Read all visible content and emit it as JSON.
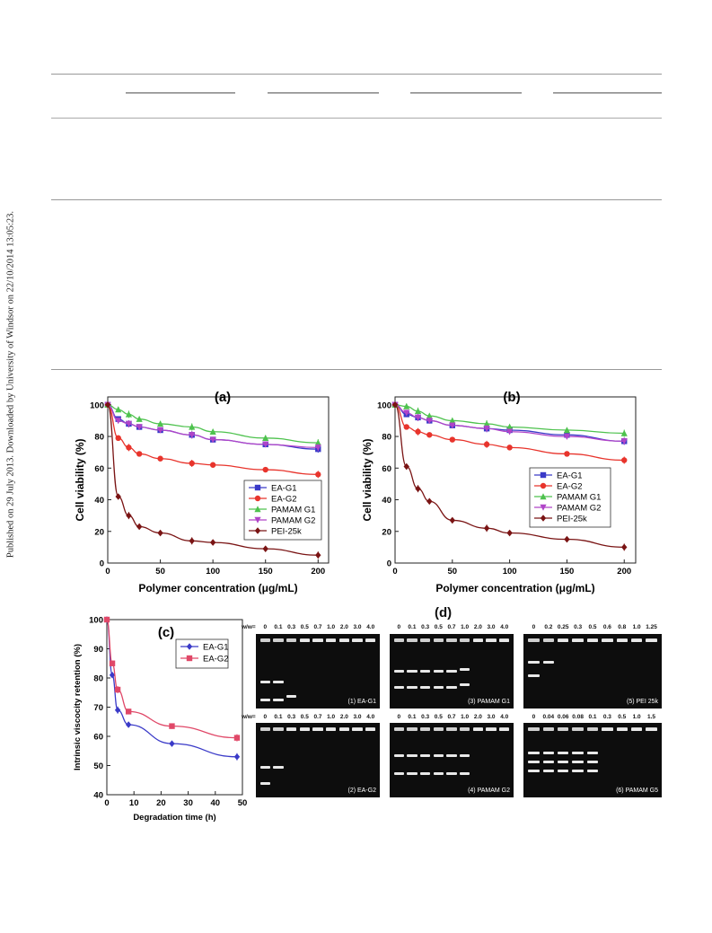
{
  "side_note": "Published on 29 July 2013. Downloaded by University of Windsor on 22/10/2014 13:05:23.",
  "panels": {
    "a": "(a)",
    "b": "(b)",
    "c": "(c)",
    "d": "(d)"
  },
  "chart_data": [
    {
      "type": "line",
      "panel": "(a)",
      "xlabel": "Polymer concentration (μg/mL)",
      "ylabel": "Cell viability (%)",
      "xlim": [
        0,
        210
      ],
      "ylim": [
        0,
        105
      ],
      "xticks": [
        0,
        50,
        100,
        150,
        200
      ],
      "yticks": [
        0,
        20,
        40,
        60,
        80,
        100
      ],
      "legend_position": "bottom-right",
      "x": [
        0,
        10,
        20,
        30,
        50,
        80,
        100,
        150,
        200
      ],
      "series": [
        {
          "name": "EA-G1",
          "color": "#3a3ac8",
          "marker": "square",
          "values": [
            100,
            91,
            88,
            86,
            84,
            81,
            78,
            75,
            72
          ]
        },
        {
          "name": "EA-G2",
          "color": "#e8342c",
          "marker": "circle",
          "values": [
            100,
            79,
            73,
            69,
            66,
            63,
            62,
            59,
            56
          ]
        },
        {
          "name": "PAMAM G1",
          "color": "#4ec24e",
          "marker": "triangle",
          "values": [
            100,
            97,
            94,
            91,
            88,
            86,
            83,
            79,
            76
          ]
        },
        {
          "name": "PAMAM G2",
          "color": "#b044c8",
          "marker": "triangle-down",
          "values": [
            100,
            90,
            88,
            86,
            84,
            81,
            78,
            75,
            73
          ]
        },
        {
          "name": "PEI-25k",
          "color": "#7a1414",
          "marker": "diamond",
          "values": [
            100,
            42,
            30,
            23,
            19,
            14,
            13,
            9,
            5
          ]
        }
      ]
    },
    {
      "type": "line",
      "panel": "(b)",
      "xlabel": "Polymer concentration (μg/mL)",
      "ylabel": "Cell viability (%)",
      "xlim": [
        0,
        210
      ],
      "ylim": [
        0,
        105
      ],
      "xticks": [
        0,
        50,
        100,
        150,
        200
      ],
      "yticks": [
        0,
        20,
        40,
        60,
        80,
        100
      ],
      "legend_position": "right",
      "x": [
        0,
        10,
        20,
        30,
        50,
        80,
        100,
        150,
        200
      ],
      "series": [
        {
          "name": "EA-G1",
          "color": "#3a3ac8",
          "marker": "square",
          "values": [
            100,
            94,
            92,
            90,
            87,
            85,
            84,
            81,
            77
          ]
        },
        {
          "name": "EA-G2",
          "color": "#e8342c",
          "marker": "circle",
          "values": [
            100,
            86,
            83,
            81,
            78,
            75,
            73,
            69,
            65
          ]
        },
        {
          "name": "PAMAM G1",
          "color": "#4ec24e",
          "marker": "triangle",
          "values": [
            100,
            99,
            96,
            93,
            90,
            88,
            86,
            84,
            82
          ]
        },
        {
          "name": "PAMAM G2",
          "color": "#b044c8",
          "marker": "triangle-down",
          "values": [
            100,
            95,
            92,
            90,
            87,
            85,
            83,
            80,
            77
          ]
        },
        {
          "name": "PEI-25k",
          "color": "#7a1414",
          "marker": "diamond",
          "values": [
            100,
            61,
            47,
            39,
            27,
            22,
            19,
            15,
            10
          ]
        }
      ]
    },
    {
      "type": "line",
      "panel": "(c)",
      "xlabel": "Degradation time (h)",
      "ylabel": "Intrinsic viscocity retention (%)",
      "xlim": [
        0,
        50
      ],
      "ylim": [
        40,
        100
      ],
      "xticks": [
        0,
        10,
        20,
        30,
        40,
        50
      ],
      "yticks": [
        40,
        50,
        60,
        70,
        80,
        90,
        100
      ],
      "legend_position": "top-right",
      "x": [
        0,
        2,
        4,
        8,
        24,
        48
      ],
      "series": [
        {
          "name": "EA-G1",
          "color": "#3a3ac8",
          "marker": "diamond",
          "values": [
            100,
            81,
            69,
            64,
            57.5,
            53
          ]
        },
        {
          "name": "EA-G2",
          "color": "#e04868",
          "marker": "square",
          "values": [
            100,
            85,
            76,
            68.5,
            63.5,
            59.5
          ]
        }
      ]
    }
  ],
  "gels": [
    {
      "caption": "(1) EA-G1",
      "ratio_prefix": "w/w=",
      "ratios": [
        "0",
        "0.1",
        "0.3",
        "0.5",
        "0.7",
        "1.0",
        "2.0",
        "3.0",
        "4.0"
      ]
    },
    {
      "caption": "(2) EA-G2",
      "ratio_prefix": "w/w=",
      "ratios": [
        "0",
        "0.1",
        "0.3",
        "0.5",
        "0.7",
        "1.0",
        "2.0",
        "3.0",
        "4.0"
      ]
    },
    {
      "caption": "(3) PAMAM G1",
      "ratio_prefix": "",
      "ratios": [
        "0",
        "0.1",
        "0.3",
        "0.5",
        "0.7",
        "1.0",
        "2.0",
        "3.0",
        "4.0"
      ]
    },
    {
      "caption": "(4) PAMAM G2",
      "ratio_prefix": "",
      "ratios": [
        "0",
        "0.1",
        "0.3",
        "0.5",
        "0.7",
        "1.0",
        "2.0",
        "3.0",
        "4.0"
      ]
    },
    {
      "caption": "(5) PEI 25k",
      "ratio_prefix": "",
      "ratios": [
        "0",
        "0.2",
        "0.25",
        "0.3",
        "0.5",
        "0.6",
        "0.8",
        "1.0",
        "1.25"
      ]
    },
    {
      "caption": "(6) PAMAM G5",
      "ratio_prefix": "",
      "ratios": [
        "0",
        "0.04",
        "0.06",
        "0.08",
        "0.1",
        "0.3",
        "0.5",
        "1.0",
        "1.5"
      ]
    }
  ]
}
